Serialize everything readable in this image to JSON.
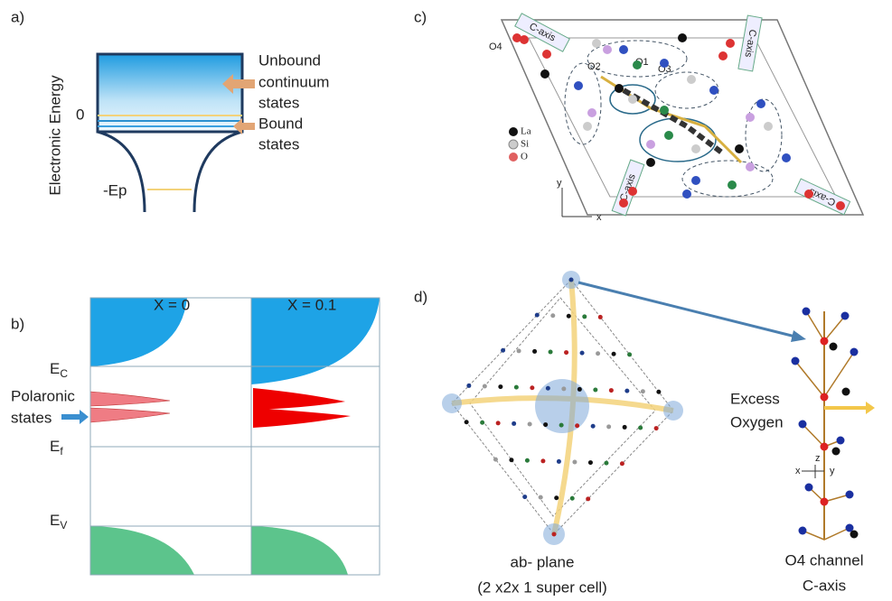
{
  "panels": {
    "a": {
      "label": "a)",
      "y_axis": "Electronic Energy",
      "zero": "0",
      "ep": "-Ep",
      "unbound": [
        "Unbound",
        "continuum",
        "states"
      ],
      "bound": [
        "Bound",
        "states"
      ]
    },
    "b": {
      "label": "b)",
      "columns": [
        "X = 0",
        "X = 0.1"
      ],
      "ec": {
        "base": "E",
        "sub": "C"
      },
      "ef": {
        "base": "E",
        "sub": "f"
      },
      "ev": {
        "base": "E",
        "sub": "V"
      },
      "polaronic": [
        "Polaronic",
        "states"
      ]
    },
    "c": {
      "label": "c)",
      "c_axis": [
        "C-axis",
        "C-axis",
        "C-axis",
        "C-axis"
      ],
      "sites": [
        "O4",
        "O1",
        "O2",
        "O3"
      ],
      "legend": [
        "La",
        "Si",
        "O"
      ],
      "axes": [
        "y",
        "x"
      ]
    },
    "d": {
      "label": "d)",
      "excess": [
        "Excess",
        "Oxygen"
      ],
      "ab_plane": [
        "ab- plane",
        "(2 x2x 1 super cell)"
      ],
      "channel": [
        "O4 channel",
        "C-axis"
      ],
      "axes": [
        "z",
        "x",
        "y"
      ]
    }
  }
}
